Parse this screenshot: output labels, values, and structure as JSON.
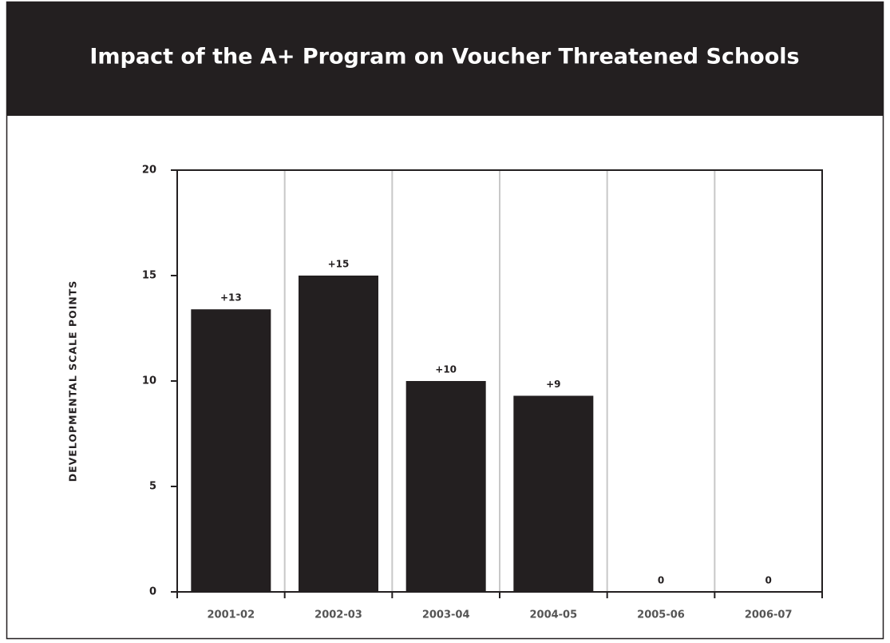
{
  "chart_data": {
    "type": "bar",
    "title": "Impact of the A+ Program on Voucher Threatened Schools",
    "y_label": "DEVELOPMENTAL SCALE POINTS",
    "categories": [
      "2001-02",
      "2002-03",
      "2003-04",
      "2004-05",
      "2005-06",
      "2006-07"
    ],
    "values": [
      13.4,
      15,
      10,
      9.3,
      0,
      0
    ],
    "value_labels": [
      "+13",
      "+15",
      "+10",
      "+9",
      "0",
      "0"
    ],
    "color": "#231f20",
    "ylim": [
      0,
      20
    ],
    "yticks": [
      0,
      5,
      10,
      15,
      20
    ],
    "grid": true
  }
}
